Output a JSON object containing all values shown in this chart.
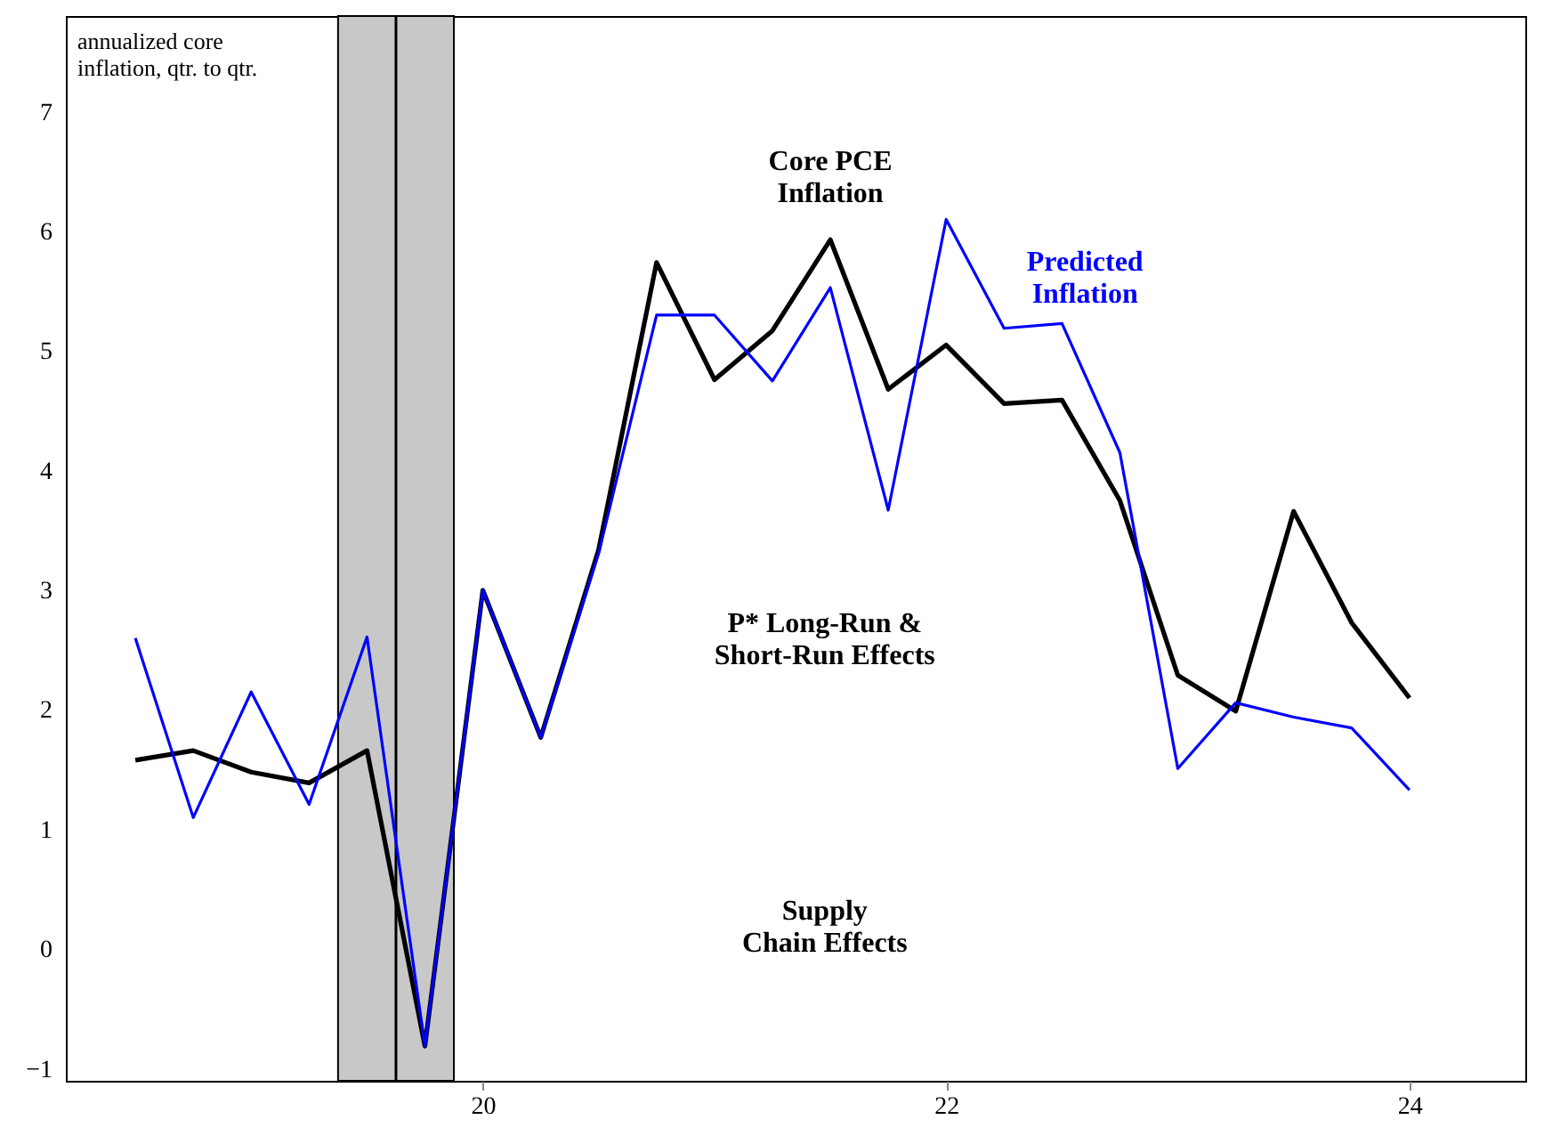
{
  "chart_data": {
    "type": "line",
    "ylabel": "annualized core\ninflation, qtr. to qtr.",
    "x": [
      18.5,
      18.75,
      19,
      19.25,
      19.5,
      19.75,
      20,
      20.25,
      20.5,
      20.75,
      21,
      21.25,
      21.5,
      21.75,
      22,
      22.25,
      22.5,
      22.75,
      23,
      23.25,
      23.5,
      23.75,
      24
    ],
    "series": [
      {
        "name": "Core PCE\nInflation",
        "color": "#000000",
        "values": [
          1.58,
          1.66,
          1.48,
          1.39,
          1.66,
          -0.81,
          3.0,
          1.77,
          3.34,
          5.74,
          4.76,
          5.17,
          5.93,
          4.68,
          5.05,
          4.56,
          4.59,
          3.75,
          2.29,
          1.99,
          3.66,
          2.73,
          2.1
        ]
      },
      {
        "name": "Predicted\nInflation",
        "color": "#0000ff",
        "values": [
          2.6,
          1.1,
          2.15,
          1.21,
          2.61,
          -0.81,
          3.0,
          1.77,
          3.31,
          5.3,
          5.3,
          4.75,
          5.53,
          3.67,
          6.1,
          5.19,
          5.23,
          4.15,
          1.51,
          2.06,
          1.94,
          1.85,
          1.33
        ]
      }
    ],
    "xlim": [
      18.2,
      24.5
    ],
    "xticks": [
      20,
      22,
      24
    ],
    "ylim": [
      -1.1,
      7.8
    ],
    "yticks": [
      -1,
      0,
      1,
      2,
      3,
      4,
      5,
      6,
      7
    ],
    "bands": [
      {
        "axis": "x",
        "from": 19.375,
        "to": 19.875,
        "color": "#c8c8c8"
      }
    ],
    "ref_lines": [
      {
        "axis": "x",
        "value": 19.625,
        "color": "#000000"
      }
    ],
    "annotations": [
      "P* Long-Run &\nShort-Run Effects",
      "Supply\nChain Effects"
    ],
    "grid": false,
    "legend": false,
    "marker": "none",
    "line_style": "solid"
  }
}
